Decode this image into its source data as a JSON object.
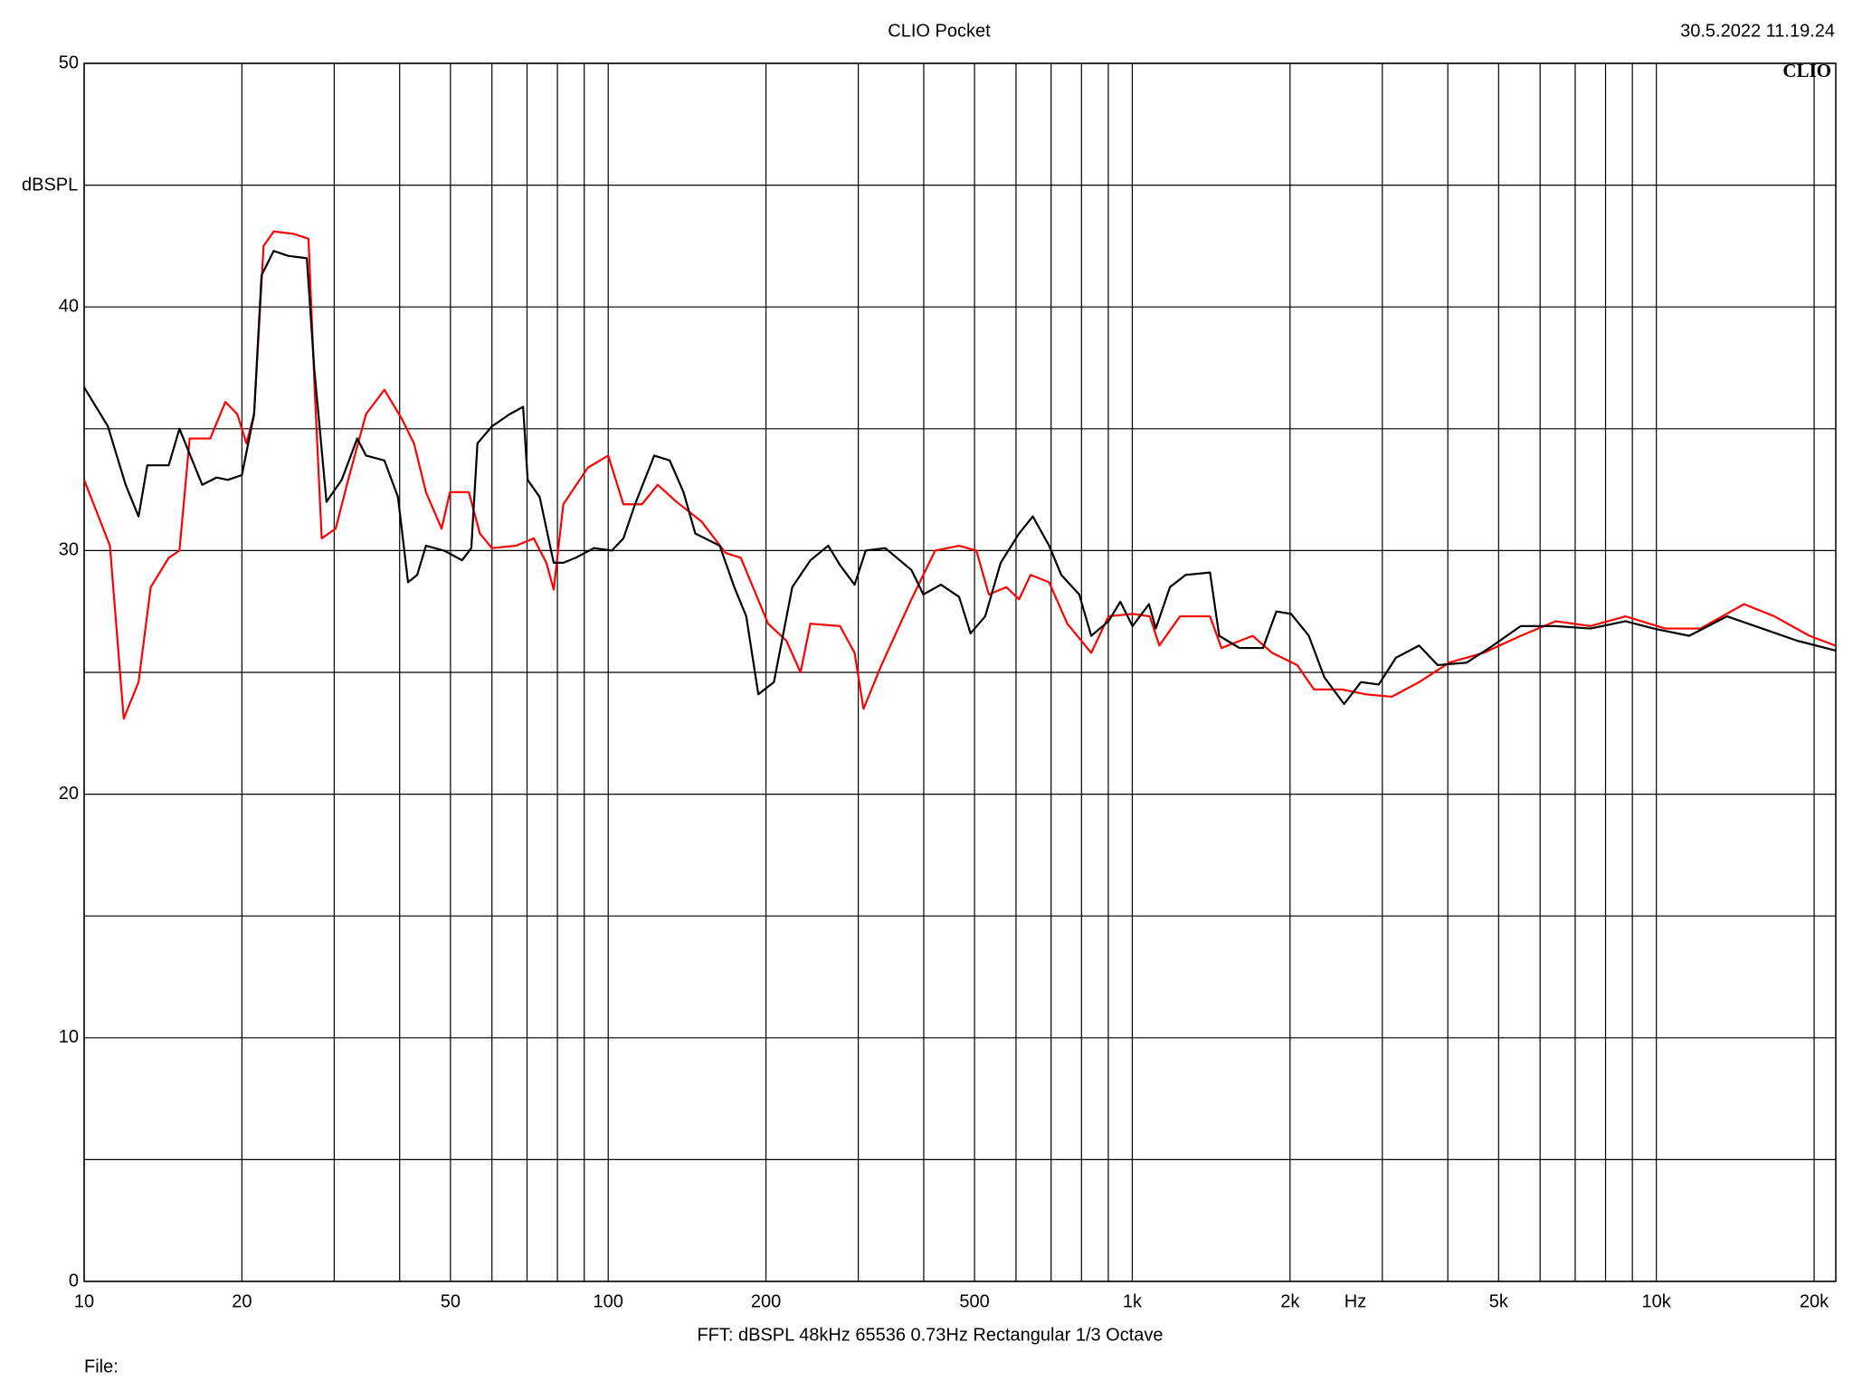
{
  "chart_data": {
    "type": "line",
    "title": "CLIO Pocket",
    "timestamp": "30.5.2022 11.19.24",
    "logo": "CLIO",
    "y_label": "dBSPL",
    "x_label": "Hz",
    "footer": "FFT:  dBSPL  48kHz   65536  0.73Hz  Rectangular  1/3 Octave",
    "file_label": "File:",
    "log_x": true,
    "grid": true,
    "xlim": [
      10,
      22000
    ],
    "ylim": [
      0,
      50
    ],
    "yticks": [
      0,
      10,
      20,
      30,
      40,
      50
    ],
    "minor_yticks": [
      5,
      15,
      25,
      35,
      45
    ],
    "xticks": [
      10,
      20,
      50,
      100,
      200,
      500,
      {
        "value": 1000,
        "label": "1k"
      },
      {
        "value": 2000,
        "label": "2k"
      },
      {
        "value": 5000,
        "label": "5k"
      },
      {
        "value": 10000,
        "label": "10k"
      },
      {
        "value": 20000,
        "label": "20k"
      }
    ],
    "minor_xticks": [
      30,
      40,
      60,
      70,
      80,
      90,
      300,
      400,
      600,
      700,
      800,
      900,
      3000,
      4000,
      6000,
      7000,
      8000,
      9000
    ],
    "series": [
      {
        "color": "#000000",
        "x": [
          10,
          11.1,
          12.0,
          12.7,
          13.2,
          14.5,
          15.2,
          16.8,
          17.9,
          18.8,
          20.0,
          21.1,
          21.8,
          23.0,
          24.5,
          26.6,
          27.5,
          29.0,
          31.0,
          33.2,
          34.5,
          37.4,
          39.7,
          41.5,
          43.2,
          44.9,
          48.6,
          52.6,
          54.8,
          56.3,
          60.0,
          64.9,
          68.8,
          70.2,
          74.0,
          78.7,
          82.1,
          86.6,
          93.9,
          101.6,
          106.9,
          112.5,
          122.4,
          131.0,
          139.2,
          146.6,
          163.2,
          174.0,
          183.4,
          193.4,
          207.1,
          224.5,
          243.1,
          263.0,
          276.9,
          295.2,
          310.0,
          337.8,
          379.0,
          399.3,
          431.4,
          467.2,
          491.4,
          524.0,
          560.9,
          608.1,
          646.0,
          694.0,
          732.1,
          792.0,
          835.0,
          900.8,
          948.8,
          1001,
          1076,
          1109,
          1180,
          1264,
          1407,
          1465,
          1602,
          1776,
          1883,
          2010,
          2172,
          2325,
          2536,
          2731,
          2953,
          3184,
          3526,
          3825,
          4345,
          4800,
          5510,
          6425,
          7485,
          8730,
          9880,
          11550,
          13640,
          15920,
          18560,
          21960
        ],
        "values": [
          36.7,
          35.1,
          32.7,
          31.4,
          33.5,
          33.5,
          35.0,
          32.7,
          33.0,
          32.9,
          33.1,
          35.6,
          41.3,
          42.3,
          42.1,
          42.0,
          37.4,
          32.0,
          32.9,
          34.6,
          33.9,
          33.7,
          32.2,
          28.7,
          29.0,
          30.2,
          30.0,
          29.6,
          30.1,
          34.4,
          35.1,
          35.6,
          35.9,
          32.9,
          32.2,
          29.5,
          29.5,
          29.7,
          30.1,
          30.0,
          30.5,
          31.9,
          33.9,
          33.7,
          32.4,
          30.7,
          30.2,
          28.5,
          27.3,
          24.1,
          24.6,
          28.5,
          29.6,
          30.2,
          29.4,
          28.6,
          30.0,
          30.1,
          29.2,
          28.2,
          28.6,
          28.1,
          26.6,
          27.3,
          29.5,
          30.7,
          31.4,
          30.2,
          29.0,
          28.2,
          26.5,
          27.1,
          27.9,
          26.9,
          27.8,
          26.8,
          28.5,
          29.0,
          29.1,
          26.5,
          26.0,
          26.0,
          27.5,
          27.4,
          26.5,
          24.8,
          23.7,
          24.6,
          24.5,
          25.6,
          26.1,
          25.3,
          25.4,
          26.0,
          26.9,
          26.9,
          26.8,
          27.1,
          26.8,
          26.5,
          27.3,
          26.8,
          26.3,
          25.9
        ]
      },
      {
        "color": "#ff0000",
        "x": [
          10,
          11.2,
          11.9,
          12.7,
          13.4,
          14.5,
          15.2,
          15.9,
          17.4,
          18.6,
          19.6,
          20.4,
          21.1,
          22.0,
          23.0,
          25.1,
          26.8,
          27.5,
          28.4,
          30.2,
          31.9,
          34.5,
          37.4,
          40.4,
          42.6,
          44.9,
          48.1,
          49.9,
          54.2,
          56.9,
          60.0,
          66.7,
          72.1,
          76.2,
          78.7,
          82.1,
          91.4,
          100,
          106.9,
          116,
          124.3,
          135,
          150.6,
          167.5,
          179.1,
          201.9,
          218.8,
          232.8,
          243.1,
          276.9,
          295.2,
          307.0,
          332.2,
          379.0,
          420.6,
          467.2,
          504.0,
          532.5,
          575,
          608.1,
          639.7,
          694,
          751.7,
          835,
          900.8,
          1001,
          1080,
          1126,
          1233,
          1407,
          1480,
          1697,
          1849,
          2063,
          2222,
          2509,
          2789,
          3128,
          3526,
          4025,
          4680,
          5510,
          6425,
          7485,
          8730,
          10400,
          12140,
          14700,
          16800,
          19600,
          21960
        ],
        "values": [
          32.9,
          30.2,
          23.1,
          24.6,
          28.5,
          29.7,
          30.0,
          34.6,
          34.6,
          36.1,
          35.6,
          34.4,
          35.6,
          42.5,
          43.1,
          43.0,
          42.8,
          36.9,
          30.5,
          30.9,
          32.9,
          35.6,
          36.6,
          35.4,
          34.4,
          32.4,
          30.9,
          32.4,
          32.4,
          30.7,
          30.1,
          30.2,
          30.5,
          29.5,
          28.4,
          31.9,
          33.4,
          33.9,
          31.9,
          31.9,
          32.7,
          32.0,
          31.2,
          29.9,
          29.7,
          27.0,
          26.3,
          25.0,
          27.0,
          26.9,
          25.8,
          23.5,
          25.3,
          28.0,
          30.0,
          30.2,
          30.0,
          28.2,
          28.5,
          28.0,
          29.0,
          28.7,
          27.0,
          25.8,
          27.3,
          27.4,
          27.3,
          26.1,
          27.3,
          27.3,
          26.0,
          26.5,
          25.8,
          25.3,
          24.3,
          24.3,
          24.1,
          24.0,
          24.6,
          25.4,
          25.8,
          26.5,
          27.1,
          26.9,
          27.3,
          26.8,
          26.8,
          27.8,
          27.3,
          26.5,
          26.1
        ]
      }
    ]
  }
}
